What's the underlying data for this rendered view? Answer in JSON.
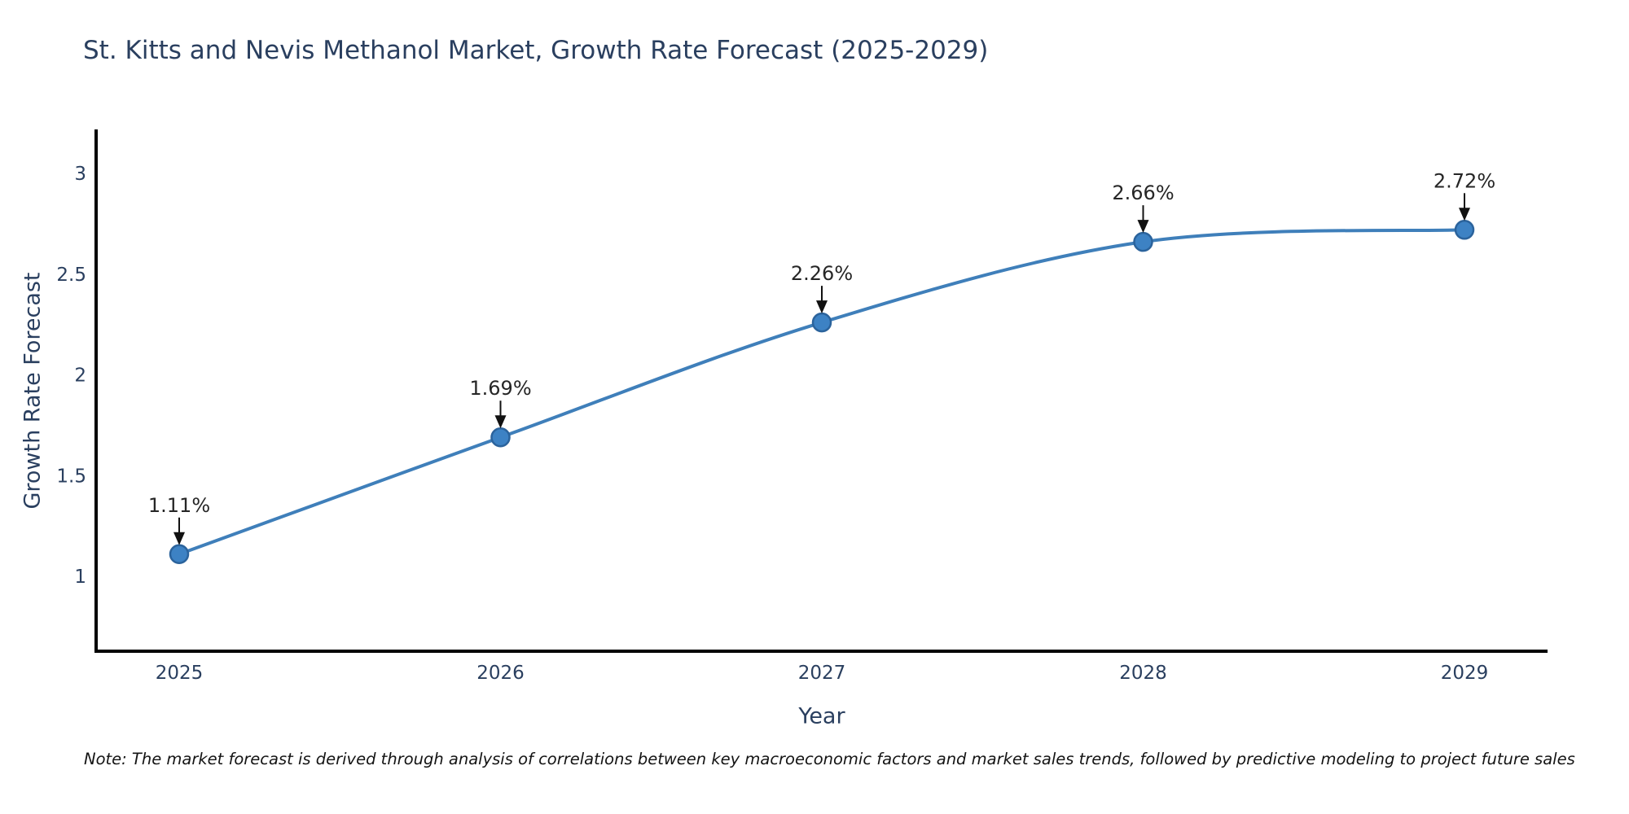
{
  "title": "St. Kitts and Nevis Methanol Market, Growth Rate Forecast (2025-2029)",
  "note": "Note: The market forecast is derived through analysis of correlations between key macroeconomic factors and market sales trends, followed by predictive modeling to project future sales",
  "chart_data": {
    "type": "line",
    "title": "St. Kitts and Nevis Methanol Market, Growth Rate Forecast (2025-2029)",
    "xlabel": "Year",
    "ylabel": "Growth Rate Forecast",
    "categories": [
      "2025",
      "2026",
      "2027",
      "2028",
      "2029"
    ],
    "series": [
      {
        "name": "Growth Rate Forecast",
        "values": [
          1.11,
          1.69,
          2.26,
          2.66,
          2.72
        ]
      }
    ],
    "point_labels": [
      "1.11%",
      "1.69%",
      "2.26%",
      "2.66%",
      "2.72%"
    ],
    "ytick_values": [
      3,
      2.5,
      2,
      1.5,
      1
    ],
    "ytick_labels": [
      "3",
      "2.5",
      "2",
      "1.5",
      "1"
    ],
    "ylim": [
      0.62,
      3.22
    ],
    "grid": false,
    "legend": "none",
    "line_shape": "spline",
    "annotation_arrows": "down",
    "colors": {
      "line": "#3f7fba",
      "marker": "#3d82c4",
      "marker_border": "#2b639c",
      "axis": "#000000",
      "text": "#2a3f5f",
      "annotation": "#262626",
      "arrow": "#111111",
      "background": "#ffffff"
    }
  }
}
